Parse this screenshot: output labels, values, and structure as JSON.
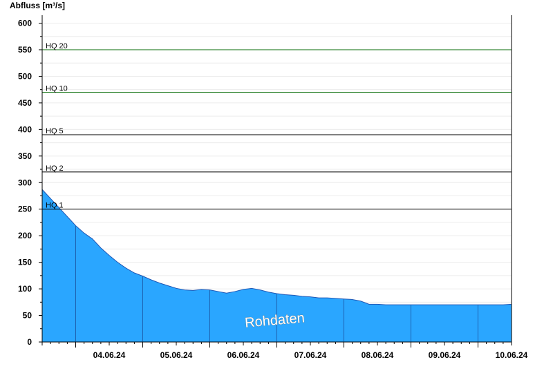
{
  "chart_data": {
    "type": "area",
    "ylabel": "Abfluss [m³/s]",
    "ylim": [
      0,
      615
    ],
    "yticks": [
      0,
      50,
      100,
      150,
      200,
      250,
      300,
      350,
      400,
      450,
      500,
      550,
      600
    ],
    "x_start": "03.06.24 12:00",
    "x_end": "10.06.24 12:00",
    "x_ticks": [
      "04.06.24",
      "05.06.24",
      "06.06.24",
      "07.06.24",
      "08.06.24",
      "09.06.24",
      "10.06.24"
    ],
    "area_color": "#2aa6ff",
    "thresholds": [
      {
        "label": "HQ 1",
        "value": 250,
        "color": "#000000"
      },
      {
        "label": "HQ 2",
        "value": 320,
        "color": "#000000"
      },
      {
        "label": "HQ 5",
        "value": 390,
        "color": "#000000"
      },
      {
        "label": "HQ 10",
        "value": 470,
        "color": "#0a6e0a"
      },
      {
        "label": "HQ 20",
        "value": 550,
        "color": "#0a6e0a"
      }
    ],
    "series": [
      {
        "x": [
          "03.06.24 12:00",
          "03.06.24 15:00",
          "03.06.24 18:00",
          "03.06.24 21:00",
          "04.06.24 00:00",
          "04.06.24 03:00",
          "04.06.24 06:00",
          "04.06.24 09:00",
          "04.06.24 12:00",
          "04.06.24 15:00",
          "04.06.24 18:00",
          "04.06.24 21:00",
          "05.06.24 00:00",
          "05.06.24 03:00",
          "05.06.24 06:00",
          "05.06.24 09:00",
          "05.06.24 12:00",
          "05.06.24 15:00",
          "05.06.24 18:00",
          "05.06.24 21:00",
          "06.06.24 00:00",
          "06.06.24 03:00",
          "06.06.24 06:00",
          "06.06.24 09:00",
          "06.06.24 12:00",
          "06.06.24 15:00",
          "06.06.24 18:00",
          "06.06.24 21:00",
          "07.06.24 00:00",
          "07.06.24 03:00",
          "07.06.24 06:00",
          "07.06.24 09:00",
          "07.06.24 12:00",
          "07.06.24 15:00",
          "07.06.24 18:00",
          "07.06.24 21:00",
          "08.06.24 00:00",
          "08.06.24 03:00",
          "08.06.24 06:00",
          "08.06.24 09:00",
          "08.06.24 12:00",
          "08.06.24 15:00",
          "08.06.24 18:00",
          "08.06.24 21:00",
          "09.06.24 00:00",
          "09.06.24 03:00",
          "09.06.24 06:00",
          "09.06.24 09:00",
          "09.06.24 12:00",
          "09.06.24 15:00",
          "09.06.24 18:00",
          "09.06.24 21:00",
          "10.06.24 00:00",
          "10.06.24 03:00",
          "10.06.24 06:00",
          "10.06.24 09:00",
          "10.06.24 12:00"
        ],
        "values": [
          287,
          270,
          253,
          236,
          219,
          205,
          194,
          177,
          163,
          150,
          139,
          130,
          124,
          117,
          111,
          106,
          101,
          98,
          97,
          99,
          98,
          95,
          92,
          95,
          99,
          101,
          98,
          94,
          91,
          89,
          88,
          86,
          85,
          83,
          83,
          82,
          81,
          80,
          77,
          71,
          71,
          70,
          70,
          70,
          70,
          70,
          70,
          70,
          70,
          70,
          70,
          70,
          70,
          70,
          70,
          70,
          71
        ]
      }
    ]
  },
  "watermark": "Rohdaten"
}
